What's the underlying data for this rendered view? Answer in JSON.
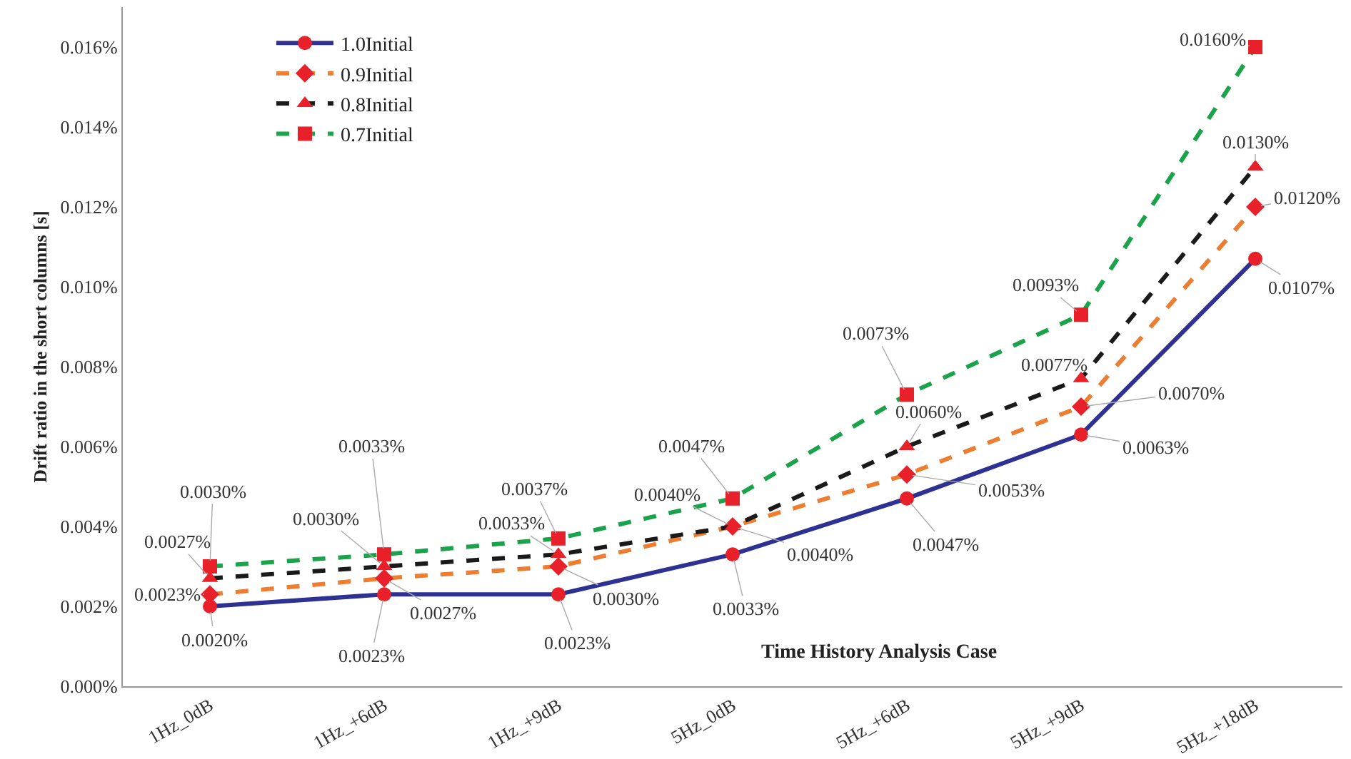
{
  "chart_data": {
    "type": "line",
    "xlabel": "Time History Analysis Case",
    "ylabel": "Drift ratio in the short columns [s]",
    "categories": [
      "1Hz_0dB",
      "1Hz_+6dB",
      "1Hz_+9dB",
      "5Hz_0dB",
      "5Hz_+6dB",
      "5Hz_+9dB",
      "5Hz_+18dB"
    ],
    "ylim": [
      0,
      0.017
    ],
    "yticks": [
      {
        "value": 0,
        "label": "0.000%"
      },
      {
        "value": 0.002,
        "label": "0.002%"
      },
      {
        "value": 0.004,
        "label": "0.004%"
      },
      {
        "value": 0.006,
        "label": "0.006%"
      },
      {
        "value": 0.008,
        "label": "0.008%"
      },
      {
        "value": 0.01,
        "label": "0.010%"
      },
      {
        "value": 0.012,
        "label": "0.012%"
      },
      {
        "value": 0.014,
        "label": "0.014%"
      },
      {
        "value": 0.016,
        "label": "0.016%"
      }
    ],
    "legend": "top left",
    "series": [
      {
        "name": "1.0Initial",
        "color": "#2e3192",
        "marker": "circle",
        "colors": [
          "#e8202a",
          "#e8202a",
          "#e8202a",
          "#e8202a",
          "#e8202a",
          "#e8202a",
          "#e8202a"
        ],
        "line_style": "solid",
        "values": [
          0.002,
          0.0023,
          0.0023,
          0.0033,
          0.0047,
          0.0063,
          0.0107
        ],
        "value_labels": [
          "0.0020%",
          "0.0023%",
          "0.0023%",
          "0.0033%",
          "0.0047%",
          "0.0063%",
          "0.0107%"
        ]
      },
      {
        "name": "0.9Initial",
        "color": "#ed7d31",
        "marker": "diamond",
        "colors": [
          "#e8202a",
          "#e8202a",
          "#e8202a",
          "#e8202a",
          "#e8202a",
          "#e8202a",
          "#e8202a"
        ],
        "line_style": "dashed",
        "values": [
          0.0023,
          0.0027,
          0.003,
          0.004,
          0.0053,
          0.007,
          0.012
        ],
        "value_labels": [
          "0.0023%",
          "0.0027%",
          "0.0030%",
          "0.0040%",
          "0.0053%",
          "0.0070%",
          "0.0120%"
        ]
      },
      {
        "name": "0.8Initial",
        "color": "#1a1a1a",
        "marker": "triangle",
        "colors": [
          "#e8202a",
          "#e8202a",
          "#e8202a",
          "#e8202a",
          "#e8202a",
          "#e8202a",
          "#e8202a"
        ],
        "line_style": "dashed",
        "values": [
          0.0027,
          0.003,
          0.0033,
          0.004,
          0.006,
          0.0077,
          0.013
        ],
        "value_labels": [
          "0.0027%",
          "0.0030%",
          "0.0033%",
          "0.0040%",
          "0.0060%",
          "0.0077%",
          "0.0130%"
        ]
      },
      {
        "name": "0.7Initial",
        "color": "#1aa34a",
        "marker": "square",
        "colors": [
          "#e8202a",
          "#e8202a",
          "#e8202a",
          "#e8202a",
          "#e8202a",
          "#e8202a",
          "#e8202a"
        ],
        "line_style": "dashed",
        "values": [
          0.003,
          0.0033,
          0.0037,
          0.0047,
          0.0073,
          0.0093,
          0.016
        ],
        "value_labels": [
          "0.0030%",
          "0.0033%",
          "0.0037%",
          "0.0047%",
          "0.0073%",
          "0.0093%",
          "0.0160%"
        ]
      }
    ]
  }
}
